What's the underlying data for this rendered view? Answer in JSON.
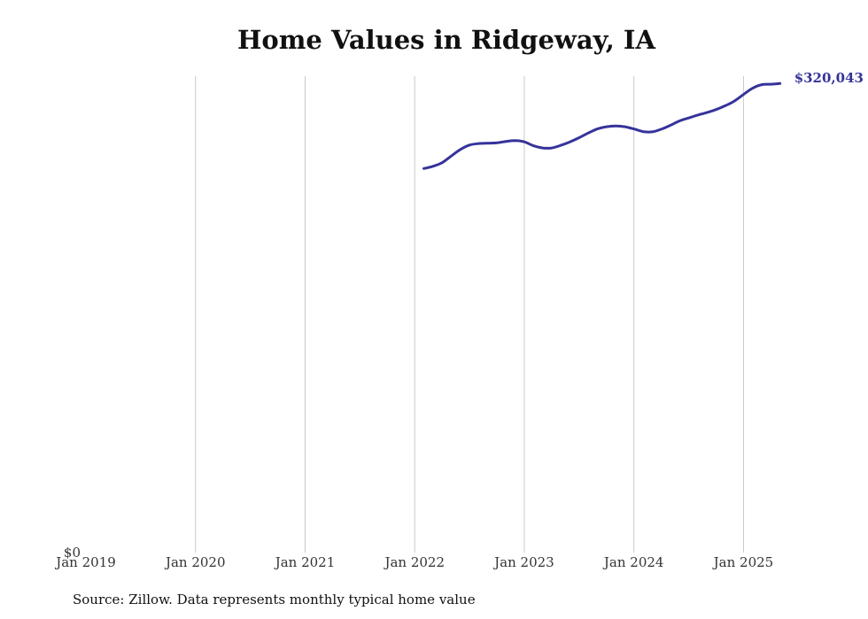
{
  "chart_data": {
    "type": "line",
    "title": "Home Values in Ridgeway, IA",
    "xlabel": "",
    "ylabel": "",
    "x_ticks": [
      "Jan 2019",
      "Jan 2020",
      "Jan 2021",
      "Jan 2022",
      "Jan 2023",
      "Jan 2024",
      "Jan 2025"
    ],
    "y_ticks": [
      "$0"
    ],
    "ylim": [
      0,
      325000
    ],
    "xlim": [
      "2019-01",
      "2025-06"
    ],
    "grid": "vertical",
    "legend": "none",
    "line_color": "#35339a",
    "end_label": "$320,043",
    "series": [
      {
        "x": [
          "2022-02",
          "2022-03",
          "2022-04",
          "2022-05",
          "2022-06",
          "2022-07",
          "2022-08",
          "2022-09",
          "2022-10",
          "2022-11",
          "2022-12",
          "2023-01",
          "2023-02",
          "2023-03",
          "2023-04",
          "2023-05",
          "2023-06",
          "2023-07",
          "2023-08",
          "2023-09",
          "2023-10",
          "2023-11",
          "2023-12",
          "2024-01",
          "2024-02",
          "2024-03",
          "2024-04",
          "2024-05",
          "2024-06",
          "2024-07",
          "2024-08",
          "2024-09",
          "2024-10",
          "2024-11",
          "2024-12",
          "2025-01",
          "2025-02",
          "2025-03",
          "2025-04",
          "2025-05"
        ],
        "y": [
          262000,
          263500,
          266000,
          270500,
          275000,
          278000,
          279000,
          279300,
          279500,
          280500,
          281000,
          280200,
          277500,
          276000,
          276000,
          277800,
          280200,
          283000,
          286200,
          289000,
          290500,
          291000,
          290500,
          289000,
          287200,
          287000,
          288800,
          291500,
          294500,
          296500,
          298500,
          300200,
          302200,
          304800,
          308000,
          312500,
          316800,
          319200,
          319500,
          320043
        ]
      }
    ]
  },
  "source": "Source: Zillow. Data represents monthly typical home value"
}
